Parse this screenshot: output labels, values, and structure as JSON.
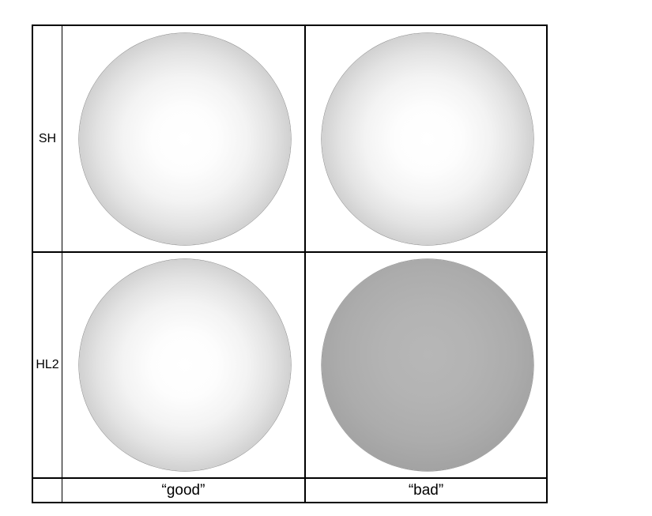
{
  "table": {
    "rows": [
      {
        "label": "SH"
      },
      {
        "label": "HL2"
      }
    ],
    "columns": [
      {
        "label": "“good”"
      },
      {
        "label": "“bad”"
      }
    ],
    "spheres": [
      {
        "row": "SH",
        "column": "good",
        "shading": "bright"
      },
      {
        "row": "SH",
        "column": "bad",
        "shading": "bright"
      },
      {
        "row": "HL2",
        "column": "good",
        "shading": "bright"
      },
      {
        "row": "HL2",
        "column": "bad",
        "shading": "dim"
      }
    ],
    "colors": {
      "border": "#000000",
      "background": "#ffffff",
      "sphere_bright_center": "#ffffff",
      "sphere_bright_edge": "#8f8f8f",
      "sphere_dim_center": "#b7b7b7",
      "sphere_dim_edge": "#8a8a8a"
    }
  }
}
